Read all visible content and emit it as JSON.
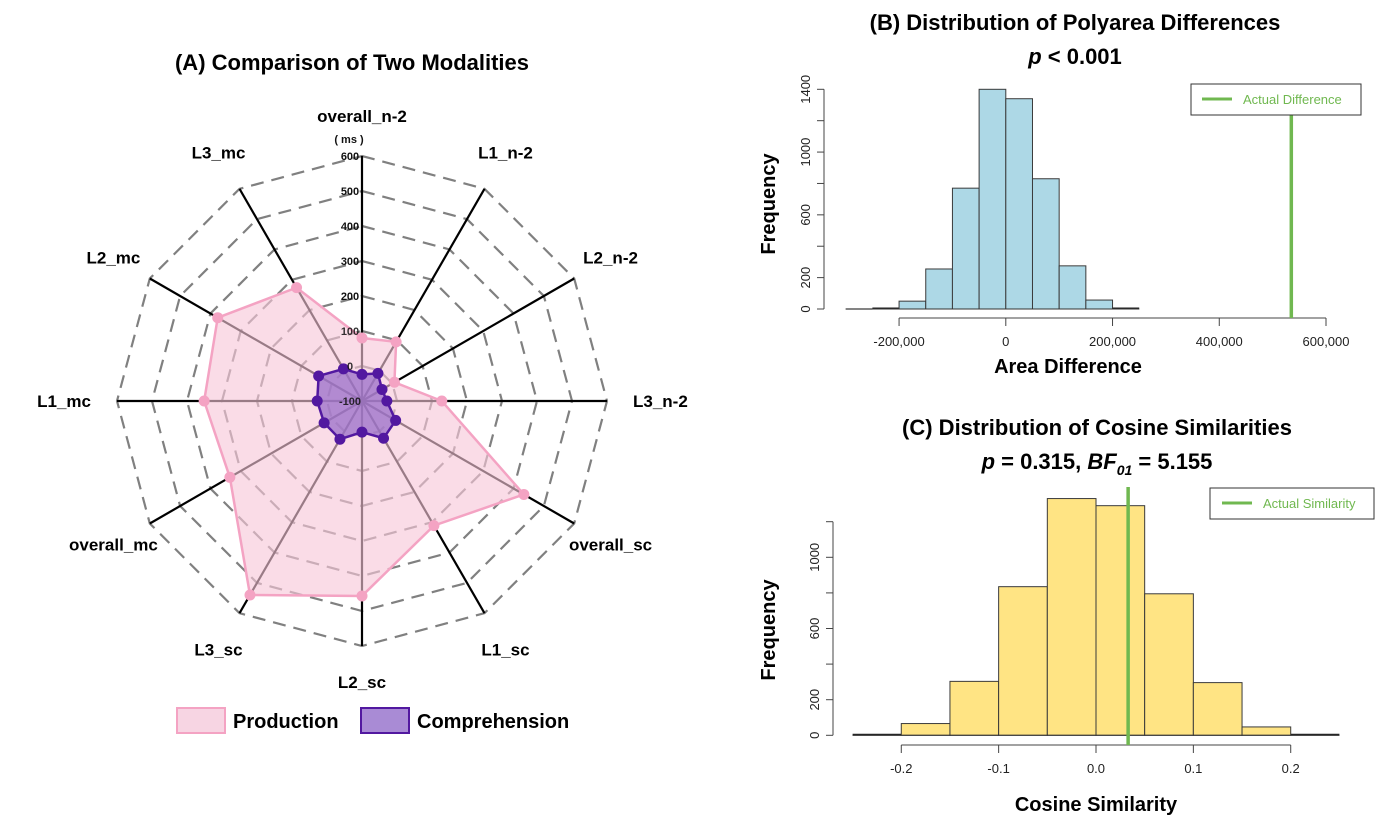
{
  "chart_data": [
    {
      "type": "radar",
      "title": "(A) Comparison of Two Modalities",
      "unit_label": "( ms )",
      "axes": [
        "overall_n-2",
        "L1_n-2",
        "L2_n-2",
        "L3_n-2",
        "overall_sc",
        "L1_sc",
        "L2_sc",
        "L3_sc",
        "overall_mc",
        "L1_mc",
        "L2_mc",
        "L3_mc"
      ],
      "range": [
        -100,
        600
      ],
      "ring_ticks": [
        -100,
        0,
        100,
        200,
        300,
        400,
        500,
        600
      ],
      "ring_tick_labels": [
        "-100",
        "0",
        "100",
        "200",
        "300",
        "400",
        "500",
        "600"
      ],
      "series": [
        {
          "name": "Production",
          "fill": "#f7c6d9",
          "stroke": "#f4a3c3",
          "values": [
            80,
            95,
            7,
            128,
            434,
            311,
            457,
            540,
            336,
            351,
            376,
            274
          ]
        },
        {
          "name": "Comprehension",
          "fill": "#9a6fc9",
          "stroke": "#5218a0",
          "values": [
            -24,
            -9,
            -34,
            -29,
            11,
            23,
            -11,
            26,
            25,
            28,
            43,
            6
          ]
        }
      ],
      "legend": [
        "Production",
        "Comprehension"
      ],
      "legend_position": "bottom"
    },
    {
      "type": "bar",
      "title": "(B) Distribution of Polyarea Differences",
      "subtitle_p": "p",
      "subtitle_rest": " < 0.001",
      "xlabel": "Area Difference",
      "ylabel": "Frequency",
      "bin_edges": [
        -300000,
        -250000,
        -200000,
        -150000,
        -100000,
        -50000,
        0,
        50000,
        100000,
        150000,
        200000,
        250000
      ],
      "values": [
        0,
        3,
        50,
        255,
        770,
        1400,
        1340,
        830,
        275,
        57,
        8
      ],
      "xlim": [
        -300000,
        600000
      ],
      "ylim": [
        0,
        1400
      ],
      "xticks": [
        -200000,
        0,
        200000,
        400000,
        600000
      ],
      "xtick_labels": [
        "-200,000",
        "0",
        "200,000",
        "400,000",
        "600,000"
      ],
      "yticks": [
        0,
        200,
        400,
        600,
        800,
        1000,
        1200,
        1400
      ],
      "ytick_labels": [
        "0",
        "200",
        "",
        "600",
        "",
        "1000",
        "",
        "1400"
      ],
      "bar_color": "#add8e6",
      "reference_line": {
        "name": "Actual Difference",
        "value": 535000,
        "color": "#70b850"
      },
      "legend_position": "top-right"
    },
    {
      "type": "bar",
      "title": "(C) Distribution of Cosine Similarities",
      "subtitle_p": "p",
      "subtitle_mid": " = 0.315, ",
      "subtitle_bf": "BF",
      "subtitle_bf_sub": "01",
      "subtitle_end": " = 5.155",
      "xlabel": "Cosine Similarity",
      "ylabel": "Frequency",
      "bin_edges": [
        -0.25,
        -0.2,
        -0.15,
        -0.1,
        -0.05,
        0.0,
        0.05,
        0.1,
        0.15,
        0.2,
        0.25
      ],
      "values": [
        2,
        66,
        303,
        835,
        1330,
        1290,
        795,
        296,
        47,
        5
      ],
      "xlim": [
        -0.25,
        0.25
      ],
      "ylim": [
        0,
        1200
      ],
      "xticks": [
        -0.2,
        -0.1,
        0.0,
        0.1,
        0.2
      ],
      "xtick_labels": [
        "-0.2",
        "-0.1",
        "0.0",
        "0.1",
        "0.2"
      ],
      "yticks": [
        0,
        200,
        400,
        600,
        800,
        1000,
        1200
      ],
      "ytick_labels": [
        "0",
        "200",
        "",
        "600",
        "",
        "1000",
        ""
      ],
      "bar_color": "#ffe484",
      "reference_line": {
        "name": "Actual Similarity",
        "value": 0.033,
        "color": "#70b850"
      },
      "legend_position": "top-right"
    }
  ]
}
